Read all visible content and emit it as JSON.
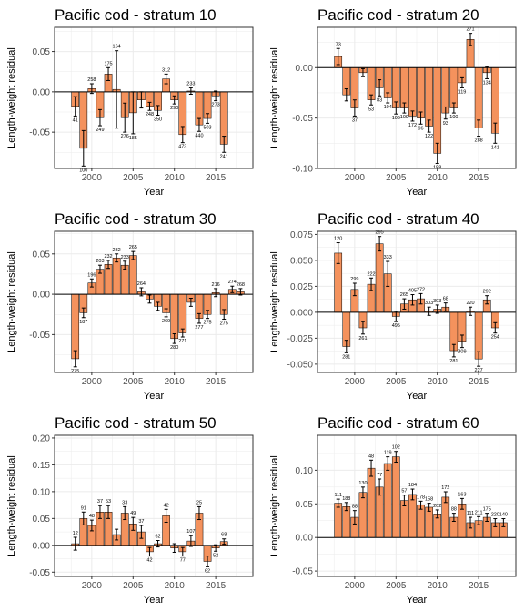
{
  "chart_data": [
    {
      "type": "bar",
      "title": "Pacific cod - stratum 10",
      "xlabel": "Year",
      "ylabel": "Length-weight residual",
      "xlim": [
        1995.5,
        2019.5
      ],
      "ylim": [
        -0.095,
        0.08
      ],
      "x_ticks": [
        2000,
        2005,
        2010,
        2015
      ],
      "y_ticks": [
        -0.05,
        0,
        0.05
      ],
      "y_tick_labels": [
        "-0.05",
        "0.00",
        "0.05"
      ],
      "grid": true,
      "bars": [
        {
          "x": 1998,
          "y": -0.018,
          "err": 0.012,
          "n": "41"
        },
        {
          "x": 1999,
          "y": -0.07,
          "err": 0.022,
          "n": "100"
        },
        {
          "x": 2000,
          "y": 0.004,
          "err": 0.006,
          "n": "258"
        },
        {
          "x": 2001,
          "y": -0.032,
          "err": 0.01,
          "n": "249"
        },
        {
          "x": 2002,
          "y": 0.022,
          "err": 0.008,
          "n": "175"
        },
        {
          "x": 2003,
          "y": 0.003,
          "err": 0.048,
          "n": "164"
        },
        {
          "x": 2004,
          "y": -0.032,
          "err": 0.018,
          "n": "276"
        },
        {
          "x": 2005,
          "y": -0.026,
          "err": 0.026,
          "n": "185"
        },
        {
          "x": 2006,
          "y": -0.01,
          "err": 0.01,
          "n": ""
        },
        {
          "x": 2007,
          "y": -0.018,
          "err": 0.005,
          "n": "248"
        },
        {
          "x": 2008,
          "y": -0.023,
          "err": 0.006,
          "n": "350"
        },
        {
          "x": 2009,
          "y": 0.016,
          "err": 0.006,
          "n": "312"
        },
        {
          "x": 2010,
          "y": -0.01,
          "err": 0.005,
          "n": "290"
        },
        {
          "x": 2011,
          "y": -0.053,
          "err": 0.01,
          "n": "473"
        },
        {
          "x": 2012,
          "y": 0.001,
          "err": 0.004,
          "n": "233"
        },
        {
          "x": 2013,
          "y": -0.041,
          "err": 0.008,
          "n": "440"
        },
        {
          "x": 2014,
          "y": -0.033,
          "err": 0.006,
          "n": "503"
        },
        {
          "x": 2015,
          "y": -0.005,
          "err": 0.006,
          "n": "273"
        },
        {
          "x": 2016,
          "y": -0.065,
          "err": 0.01,
          "n": "241"
        }
      ]
    },
    {
      "type": "bar",
      "title": "Pacific cod - stratum 20",
      "xlabel": "Year",
      "ylabel": "Length-weight residual",
      "xlim": [
        1995.5,
        2019.5
      ],
      "ylim": [
        -0.1,
        0.04
      ],
      "x_ticks": [
        2000,
        2005,
        2010,
        2015
      ],
      "y_ticks": [
        -0.1,
        -0.05,
        0
      ],
      "y_tick_labels": [
        "-0.10",
        "-0.05",
        "0.00"
      ],
      "grid": true,
      "bars": [
        {
          "x": 1998,
          "y": 0.011,
          "err": 0.008,
          "n": "73"
        },
        {
          "x": 1999,
          "y": -0.027,
          "err": 0.006,
          "n": ""
        },
        {
          "x": 2000,
          "y": -0.04,
          "err": 0.008,
          "n": "37"
        },
        {
          "x": 2001,
          "y": -0.005,
          "err": 0.004,
          "n": ""
        },
        {
          "x": 2002,
          "y": -0.032,
          "err": 0.005,
          "n": "53"
        },
        {
          "x": 2003,
          "y": -0.02,
          "err": 0.008,
          "n": "83"
        },
        {
          "x": 2004,
          "y": -0.03,
          "err": 0.005,
          "n": "104"
        },
        {
          "x": 2005,
          "y": -0.04,
          "err": 0.006,
          "n": "106"
        },
        {
          "x": 2006,
          "y": -0.04,
          "err": 0.005,
          "n": "109"
        },
        {
          "x": 2007,
          "y": -0.048,
          "err": 0.005,
          "n": "172"
        },
        {
          "x": 2008,
          "y": -0.05,
          "err": 0.006,
          "n": "96"
        },
        {
          "x": 2009,
          "y": -0.058,
          "err": 0.006,
          "n": "122"
        },
        {
          "x": 2010,
          "y": -0.085,
          "err": 0.01,
          "n": "158"
        },
        {
          "x": 2011,
          "y": -0.045,
          "err": 0.006,
          "n": "93"
        },
        {
          "x": 2012,
          "y": -0.04,
          "err": 0.005,
          "n": "100"
        },
        {
          "x": 2013,
          "y": -0.015,
          "err": 0.005,
          "n": "119"
        },
        {
          "x": 2014,
          "y": 0.028,
          "err": 0.006,
          "n": "271"
        },
        {
          "x": 2015,
          "y": -0.06,
          "err": 0.008,
          "n": "288"
        },
        {
          "x": 2016,
          "y": -0.005,
          "err": 0.006,
          "n": "134"
        },
        {
          "x": 2017,
          "y": -0.065,
          "err": 0.01,
          "n": "141"
        }
      ]
    },
    {
      "type": "bar",
      "title": "Pacific cod - stratum 30",
      "xlabel": "Year",
      "ylabel": "Length-weight residual",
      "xlim": [
        1995.5,
        2019.5
      ],
      "ylim": [
        -0.097,
        0.078
      ],
      "x_ticks": [
        2000,
        2005,
        2010,
        2015
      ],
      "y_ticks": [
        -0.05,
        0,
        0.05
      ],
      "y_tick_labels": [
        "-0.05",
        "0.00",
        "0.05"
      ],
      "grid": true,
      "bars": [
        {
          "x": 1998,
          "y": -0.08,
          "err": 0.01,
          "n": "275"
        },
        {
          "x": 1999,
          "y": -0.023,
          "err": 0.006,
          "n": "187"
        },
        {
          "x": 2000,
          "y": 0.014,
          "err": 0.005,
          "n": "196"
        },
        {
          "x": 2001,
          "y": 0.031,
          "err": 0.005,
          "n": "203"
        },
        {
          "x": 2002,
          "y": 0.037,
          "err": 0.005,
          "n": "232"
        },
        {
          "x": 2003,
          "y": 0.045,
          "err": 0.005,
          "n": "232"
        },
        {
          "x": 2004,
          "y": 0.036,
          "err": 0.005,
          "n": "233"
        },
        {
          "x": 2005,
          "y": 0.048,
          "err": 0.005,
          "n": "265"
        },
        {
          "x": 2006,
          "y": 0.003,
          "err": 0.005,
          "n": "264"
        },
        {
          "x": 2007,
          "y": -0.006,
          "err": 0.005,
          "n": ""
        },
        {
          "x": 2008,
          "y": -0.015,
          "err": 0.005,
          "n": ""
        },
        {
          "x": 2009,
          "y": -0.023,
          "err": 0.005,
          "n": "269"
        },
        {
          "x": 2010,
          "y": -0.055,
          "err": 0.006,
          "n": "280"
        },
        {
          "x": 2011,
          "y": -0.048,
          "err": 0.005,
          "n": "271"
        },
        {
          "x": 2012,
          "y": -0.01,
          "err": 0.005,
          "n": ""
        },
        {
          "x": 2013,
          "y": -0.03,
          "err": 0.006,
          "n": "277"
        },
        {
          "x": 2014,
          "y": -0.025,
          "err": 0.005,
          "n": "275"
        },
        {
          "x": 2015,
          "y": 0.002,
          "err": 0.005,
          "n": "216"
        },
        {
          "x": 2016,
          "y": -0.025,
          "err": 0.006,
          "n": "275"
        },
        {
          "x": 2017,
          "y": 0.006,
          "err": 0.004,
          "n": "274"
        },
        {
          "x": 2018,
          "y": 0.003,
          "err": 0.004,
          "n": "268"
        }
      ]
    },
    {
      "type": "bar",
      "title": "Pacific cod - stratum 40",
      "xlabel": "Year",
      "ylabel": "Length-weight residual",
      "xlim": [
        1995.5,
        2019.5
      ],
      "ylim": [
        -0.058,
        0.078
      ],
      "x_ticks": [
        2000,
        2005,
        2010,
        2015
      ],
      "y_ticks": [
        -0.05,
        -0.025,
        0,
        0.025,
        0.05,
        0.075
      ],
      "y_tick_labels": [
        "-0.050",
        "-0.025",
        "0.000",
        "0.025",
        "0.050",
        "0.075"
      ],
      "grid": true,
      "bars": [
        {
          "x": 1998,
          "y": 0.057,
          "err": 0.01,
          "n": "120"
        },
        {
          "x": 1999,
          "y": -0.033,
          "err": 0.006,
          "n": "281"
        },
        {
          "x": 2000,
          "y": 0.022,
          "err": 0.006,
          "n": "299"
        },
        {
          "x": 2001,
          "y": -0.015,
          "err": 0.006,
          "n": "261"
        },
        {
          "x": 2002,
          "y": 0.027,
          "err": 0.006,
          "n": "222"
        },
        {
          "x": 2003,
          "y": 0.066,
          "err": 0.007,
          "n": "295"
        },
        {
          "x": 2004,
          "y": 0.037,
          "err": 0.012,
          "n": "333"
        },
        {
          "x": 2005,
          "y": -0.004,
          "err": 0.005,
          "n": "495"
        },
        {
          "x": 2006,
          "y": 0.008,
          "err": 0.005,
          "n": "265"
        },
        {
          "x": 2007,
          "y": 0.012,
          "err": 0.005,
          "n": "405"
        },
        {
          "x": 2008,
          "y": 0.013,
          "err": 0.005,
          "n": "272"
        },
        {
          "x": 2009,
          "y": 0.001,
          "err": 0.004,
          "n": "303"
        },
        {
          "x": 2010,
          "y": 0.003,
          "err": 0.004,
          "n": "303"
        },
        {
          "x": 2011,
          "y": 0.005,
          "err": 0.004,
          "n": "68"
        },
        {
          "x": 2012,
          "y": -0.037,
          "err": 0.006,
          "n": "281"
        },
        {
          "x": 2013,
          "y": -0.028,
          "err": 0.006,
          "n": "309"
        },
        {
          "x": 2014,
          "y": 0.001,
          "err": 0.004,
          "n": "220"
        },
        {
          "x": 2015,
          "y": -0.045,
          "err": 0.007,
          "n": "227"
        },
        {
          "x": 2016,
          "y": 0.012,
          "err": 0.004,
          "n": "292"
        },
        {
          "x": 2017,
          "y": -0.015,
          "err": 0.005,
          "n": "254"
        }
      ]
    },
    {
      "type": "bar",
      "title": "Pacific cod - stratum 50",
      "xlabel": "Year",
      "ylabel": "Length-weight residual",
      "xlim": [
        1995.5,
        2019.5
      ],
      "ylim": [
        -0.058,
        0.205
      ],
      "x_ticks": [
        2000,
        2005,
        2010,
        2015
      ],
      "y_ticks": [
        -0.05,
        0,
        0.05,
        0.1,
        0.15,
        0.2
      ],
      "y_tick_labels": [
        "-0.05",
        "0.00",
        "0.05",
        "0.10",
        "0.15",
        "0.20"
      ],
      "grid": true,
      "bars": [
        {
          "x": 1998,
          "y": 0.003,
          "err": 0.012,
          "n": "12"
        },
        {
          "x": 1999,
          "y": 0.05,
          "err": 0.012,
          "n": "91"
        },
        {
          "x": 2000,
          "y": 0.037,
          "err": 0.01,
          "n": "48"
        },
        {
          "x": 2001,
          "y": 0.062,
          "err": 0.012,
          "n": "37"
        },
        {
          "x": 2002,
          "y": 0.062,
          "err": 0.012,
          "n": "53"
        },
        {
          "x": 2003,
          "y": 0.02,
          "err": 0.01,
          "n": ""
        },
        {
          "x": 2004,
          "y": 0.06,
          "err": 0.012,
          "n": "33"
        },
        {
          "x": 2005,
          "y": 0.04,
          "err": 0.012,
          "n": "49"
        },
        {
          "x": 2006,
          "y": 0.025,
          "err": 0.012,
          "n": "37"
        },
        {
          "x": 2007,
          "y": -0.012,
          "err": 0.008,
          "n": "42"
        },
        {
          "x": 2008,
          "y": 0.003,
          "err": 0.006,
          "n": "62"
        },
        {
          "x": 2009,
          "y": 0.055,
          "err": 0.012,
          "n": "42"
        },
        {
          "x": 2010,
          "y": -0.005,
          "err": 0.008,
          "n": ""
        },
        {
          "x": 2011,
          "y": -0.012,
          "err": 0.008,
          "n": "77"
        },
        {
          "x": 2012,
          "y": 0.008,
          "err": 0.01,
          "n": "107"
        },
        {
          "x": 2013,
          "y": 0.06,
          "err": 0.012,
          "n": "25"
        },
        {
          "x": 2014,
          "y": -0.03,
          "err": 0.01,
          "n": "62"
        },
        {
          "x": 2015,
          "y": -0.005,
          "err": 0.006,
          "n": "52"
        },
        {
          "x": 2016,
          "y": 0.007,
          "err": 0.005,
          "n": "68"
        }
      ]
    },
    {
      "type": "bar",
      "title": "Pacific cod - stratum 60",
      "xlabel": "Year",
      "ylabel": "Length-weight residual",
      "xlim": [
        1995.5,
        2019.5
      ],
      "ylim": [
        -0.058,
        0.152
      ],
      "x_ticks": [
        2000,
        2005,
        2010,
        2015
      ],
      "y_ticks": [
        -0.05,
        0,
        0.05,
        0.1
      ],
      "y_tick_labels": [
        "-0.05",
        "0.00",
        "0.05",
        "0.10"
      ],
      "grid": true,
      "bars": [
        {
          "x": 1998,
          "y": 0.051,
          "err": 0.006,
          "n": "111"
        },
        {
          "x": 1999,
          "y": 0.046,
          "err": 0.006,
          "n": "188"
        },
        {
          "x": 2000,
          "y": 0.03,
          "err": 0.01,
          "n": "88"
        },
        {
          "x": 2001,
          "y": 0.067,
          "err": 0.008,
          "n": "130"
        },
        {
          "x": 2002,
          "y": 0.103,
          "err": 0.012,
          "n": "48"
        },
        {
          "x": 2003,
          "y": 0.075,
          "err": 0.012,
          "n": "77"
        },
        {
          "x": 2004,
          "y": 0.11,
          "err": 0.01,
          "n": "119"
        },
        {
          "x": 2005,
          "y": 0.12,
          "err": 0.008,
          "n": "102"
        },
        {
          "x": 2006,
          "y": 0.055,
          "err": 0.008,
          "n": "57"
        },
        {
          "x": 2007,
          "y": 0.064,
          "err": 0.008,
          "n": "184"
        },
        {
          "x": 2008,
          "y": 0.048,
          "err": 0.006,
          "n": "178"
        },
        {
          "x": 2009,
          "y": 0.045,
          "err": 0.006,
          "n": "158"
        },
        {
          "x": 2010,
          "y": 0.035,
          "err": 0.006,
          "n": "202"
        },
        {
          "x": 2011,
          "y": 0.06,
          "err": 0.008,
          "n": "172"
        },
        {
          "x": 2012,
          "y": 0.03,
          "err": 0.006,
          "n": "88"
        },
        {
          "x": 2013,
          "y": 0.05,
          "err": 0.008,
          "n": "163"
        },
        {
          "x": 2014,
          "y": 0.022,
          "err": 0.008,
          "n": "111"
        },
        {
          "x": 2015,
          "y": 0.025,
          "err": 0.006,
          "n": "211"
        },
        {
          "x": 2016,
          "y": 0.03,
          "err": 0.006,
          "n": "175"
        },
        {
          "x": 2017,
          "y": 0.022,
          "err": 0.006,
          "n": "220"
        },
        {
          "x": 2018,
          "y": 0.022,
          "err": 0.006,
          "n": "140"
        }
      ]
    }
  ],
  "style": {
    "bar_fill": "#F4925D",
    "bar_stroke": "#000000",
    "grid_color": "#ebebeb",
    "panel_border": "#333333",
    "text_color": "#000000",
    "tick_text_color": "#4d4d4d"
  }
}
